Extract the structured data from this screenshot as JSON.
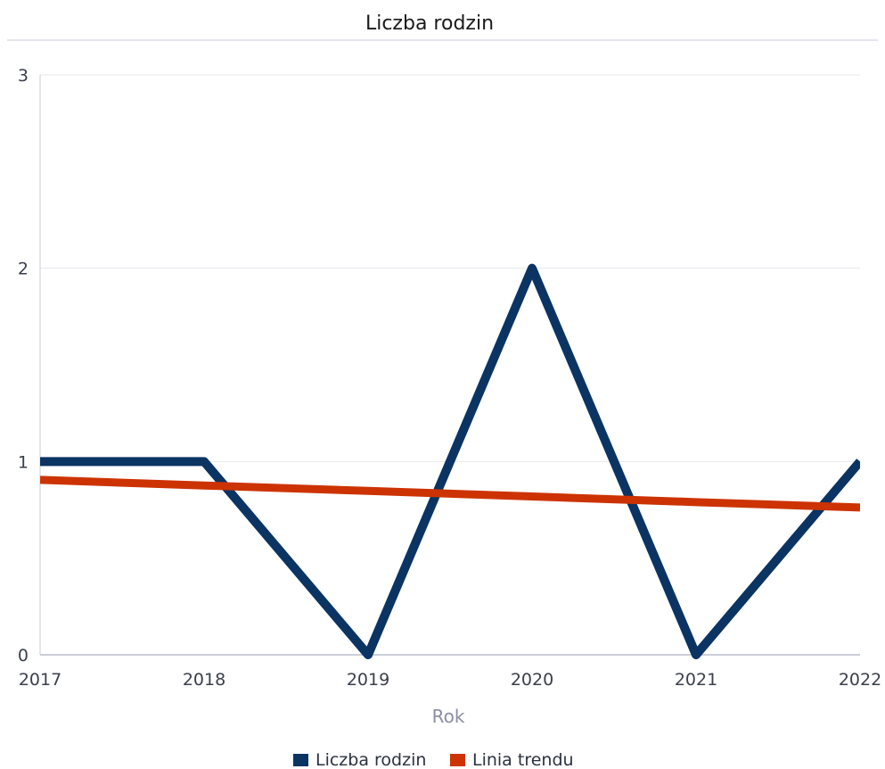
{
  "chart_data": {
    "type": "line",
    "title": "Liczba rodzin",
    "xlabel": "Rok",
    "ylabel": "",
    "x": [
      "2017",
      "2018",
      "2019",
      "2020",
      "2021",
      "2022"
    ],
    "ylim": [
      0,
      3
    ],
    "yticks": [
      "0",
      "1",
      "2",
      "3"
    ],
    "grid": true,
    "legend_position": "bottom",
    "series": [
      {
        "name": "Liczba rodzin",
        "values": [
          1,
          1,
          0,
          2,
          0,
          1
        ],
        "color": "#0b3463"
      },
      {
        "name": "Linia trendu",
        "values": [
          0.905,
          0.876,
          0.848,
          0.819,
          0.79,
          0.762
        ],
        "color": "#cc3300"
      }
    ]
  }
}
